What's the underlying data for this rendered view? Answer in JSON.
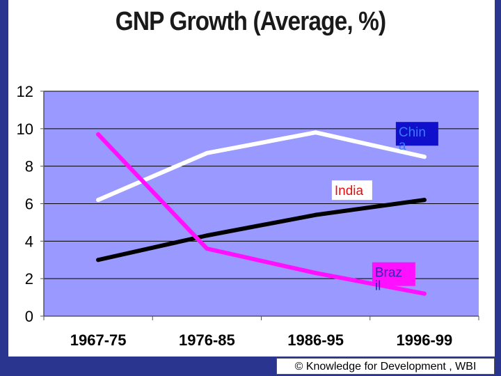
{
  "title": "GNP Growth (Average, %)",
  "footer": "© Knowledge for Development , WBI",
  "chart_data": {
    "type": "line",
    "title": "GNP Growth (Average, %)",
    "categories": [
      "1967-75",
      "1976-85",
      "1986-95",
      "1996-99"
    ],
    "ylim": [
      0,
      12
    ],
    "yticks": [
      0,
      2,
      4,
      6,
      8,
      10,
      12
    ],
    "grid": true,
    "series": [
      {
        "name": "China",
        "label_lines": [
          "Chin",
          "a"
        ],
        "values": [
          6.2,
          8.7,
          9.8,
          8.5
        ],
        "color": "#ffffff",
        "label_bg": "#1010cc",
        "label_fg": "#3a7aff"
      },
      {
        "name": "India",
        "label_lines": [
          "India"
        ],
        "values": [
          3.0,
          4.3,
          5.4,
          6.2
        ],
        "color": "#000000",
        "label_bg": "#ffffff",
        "label_fg": "#e01010"
      },
      {
        "name": "Brazil",
        "label_lines": [
          "Braz",
          "il"
        ],
        "values": [
          9.7,
          3.6,
          2.3,
          1.2
        ],
        "color": "#ff10ff",
        "label_bg": "#ff10ff",
        "label_fg": "#2b2bb0"
      }
    ]
  }
}
